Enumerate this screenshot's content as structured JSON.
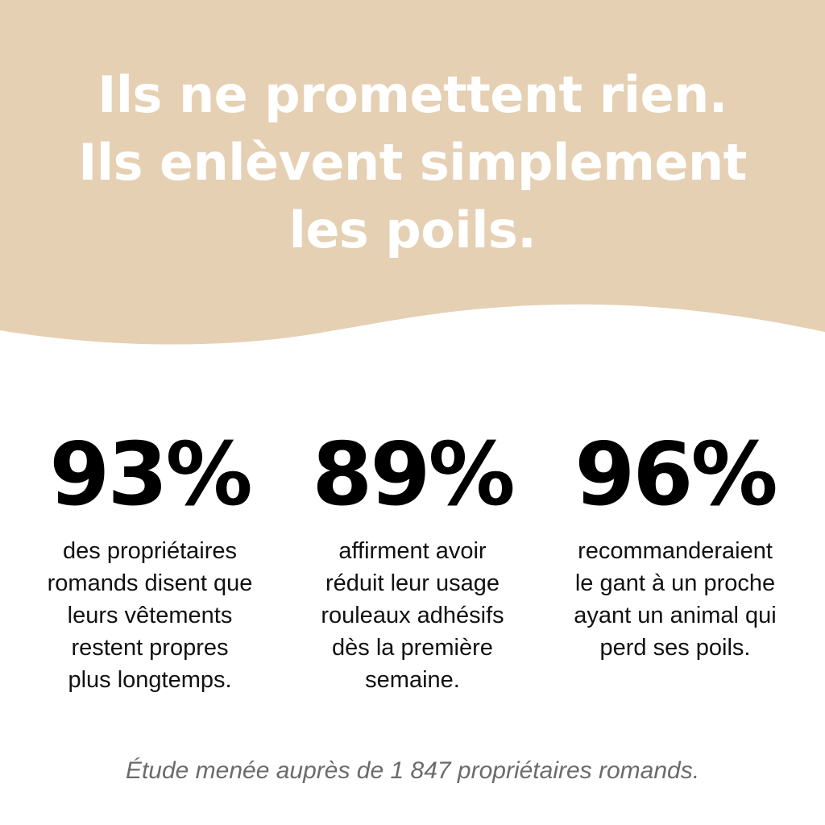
{
  "colors": {
    "hero_background": "#e5d0b4",
    "page_background": "#ffffff",
    "headline_text": "#ffffff",
    "stat_value_text": "#000000",
    "footnote_text": "#6b6b6b"
  },
  "headline": {
    "lines": [
      "Ils ne promettent rien.",
      "Ils enlèvent simplement",
      "les poils."
    ]
  },
  "stats": [
    {
      "value": "93%",
      "description_lines": [
        "des propriétaires",
        "romands disent que",
        "leurs vêtements",
        "restent propres",
        "plus longtemps."
      ]
    },
    {
      "value": "89%",
      "description_lines": [
        "affirment avoir",
        "réduit leur usage",
        "rouleaux adhésifs",
        "dès la première",
        "semaine."
      ]
    },
    {
      "value": "96%",
      "description_lines": [
        "recommanderaient",
        "le gant à un proche",
        "ayant un animal qui",
        "perd ses poils."
      ]
    }
  ],
  "footnote": "Étude menée auprès de 1 847 propriétaires romands."
}
